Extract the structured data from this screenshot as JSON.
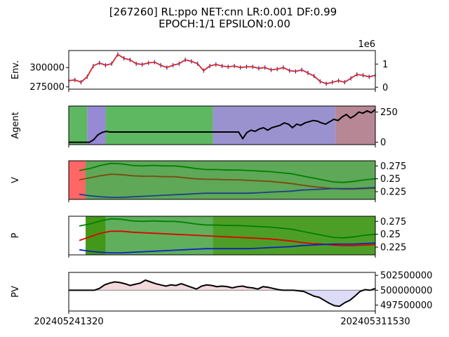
{
  "chart_data": {
    "type": "line",
    "title_lines": [
      "[267260] RL:ppo NET:cnn LR:0.001 DF:0.99",
      "EPOCH:1/1 EPSILON:0.00"
    ],
    "x_tick_labels": [
      "202405241320",
      "202405311530"
    ],
    "panels": [
      {
        "key": "env",
        "ylabel": "Env.",
        "left_ticks": [
          275000,
          300000
        ],
        "right_ticks": [
          0,
          1
        ],
        "right_offset_label": "1e6",
        "ylim": [
          272000,
          322000
        ],
        "series": [
          {
            "color": "#d62728",
            "values": [
              283000,
              284000,
              281000,
              288000,
              302000,
              306000,
              303000,
              305000,
              317000,
              312000,
              310000,
              305000,
              304000,
              306000,
              307000,
              303000,
              300000,
              303000,
              305000,
              310000,
              308000,
              305000,
              296000,
              302000,
              304000,
              302000,
              301000,
              302000,
              300000,
              301000,
              301000,
              299000,
              300000,
              297000,
              298000,
              300000,
              296000,
              295000,
              297000,
              293000,
              289000,
              282000,
              279000,
              281000,
              283000,
              281000,
              286000,
              291000,
              290000,
              288000,
              290000
            ]
          }
        ],
        "bars_color": "#1f1fcf"
      },
      {
        "key": "agent",
        "ylabel": "Agent",
        "right_ticks": [
          0,
          250
        ],
        "ylim": [
          -20,
          300
        ],
        "background_segments": [
          {
            "from": 0.0,
            "to": 0.06,
            "color": "#4caf50"
          },
          {
            "from": 0.06,
            "to": 0.12,
            "color": "#8b7dd0"
          },
          {
            "from": 0.12,
            "to": 0.47,
            "color": "#4caf50"
          },
          {
            "from": 0.47,
            "to": 0.87,
            "color": "#8f86c9"
          },
          {
            "from": 0.87,
            "to": 1.0,
            "color": "#b07a8a"
          }
        ],
        "series": [
          {
            "color": "#000000",
            "values": [
              0,
              0,
              0,
              0,
              0,
              0,
              20,
              60,
              80,
              90,
              85,
              85,
              85,
              85,
              85,
              85,
              85,
              85,
              85,
              85,
              85,
              85,
              85,
              85,
              85,
              85,
              85,
              85,
              85,
              85,
              85,
              85,
              85,
              85,
              85,
              85,
              85,
              85,
              85,
              85,
              85,
              85,
              30,
              80,
              100,
              90,
              110,
              120,
              100,
              120,
              130,
              140,
              160,
              150,
              120,
              150,
              140,
              160,
              170,
              180,
              175,
              160,
              150,
              170,
              190,
              180,
              210,
              230,
              200,
              220,
              250,
              240,
              260,
              245,
              270
            ]
          }
        ]
      },
      {
        "key": "v",
        "ylabel": "V",
        "right_ticks": [
          0.225,
          0.25,
          0.275
        ],
        "ylim": [
          0.21,
          0.285
        ],
        "background_segments": [
          {
            "from": 0.0,
            "to": 0.055,
            "color": "#ff5555"
          },
          {
            "from": 0.055,
            "to": 1.0,
            "color": "#4c9f45"
          }
        ],
        "series": [
          {
            "color": "#008000",
            "values": [
              null,
              0.266,
              0.27,
              0.276,
              0.28,
              0.279,
              0.276,
              0.275,
              0.276,
              0.275,
              0.275,
              0.273,
              0.27,
              0.268,
              0.268,
              0.267,
              0.267,
              0.266,
              0.265,
              0.264,
              0.262,
              0.26,
              0.256,
              0.252,
              0.248,
              0.244,
              0.243,
              0.245,
              0.248,
              0.25
            ]
          },
          {
            "color": "#7a4a10",
            "values": [
              null,
              0.248,
              0.252,
              0.256,
              0.259,
              0.258,
              0.256,
              0.255,
              0.255,
              0.254,
              0.254,
              0.252,
              0.25,
              0.249,
              0.249,
              0.248,
              0.248,
              0.247,
              0.246,
              0.245,
              0.243,
              0.241,
              0.238,
              0.235,
              0.233,
              0.231,
              0.23,
              0.23,
              0.231,
              0.232
            ]
          },
          {
            "color": "#1f3f88",
            "values": [
              null,
              0.22,
              0.217,
              0.215,
              0.214,
              0.214,
              0.215,
              0.216,
              0.217,
              0.218,
              0.219,
              0.22,
              0.221,
              0.222,
              0.222,
              0.222,
              0.222,
              0.222,
              0.223,
              0.224,
              0.225,
              0.226,
              0.228,
              0.229,
              0.23,
              0.231,
              0.231,
              0.231,
              0.232,
              0.233
            ]
          }
        ]
      },
      {
        "key": "p",
        "ylabel": "P",
        "right_ticks": [
          0.225,
          0.25,
          0.275
        ],
        "ylim": [
          0.21,
          0.285
        ],
        "background_segments": [
          {
            "from": 0.0,
            "to": 0.055,
            "color": "#ffffff"
          },
          {
            "from": 0.055,
            "to": 0.12,
            "color": "#2f8c00"
          },
          {
            "from": 0.12,
            "to": 0.47,
            "color": "#4ea64a"
          },
          {
            "from": 0.47,
            "to": 1.0,
            "color": "#3a9410"
          }
        ],
        "series": [
          {
            "color": "#008000",
            "values": [
              null,
              0.266,
              0.27,
              0.276,
              0.28,
              0.279,
              0.276,
              0.275,
              0.276,
              0.275,
              0.275,
              0.273,
              0.27,
              0.268,
              0.268,
              0.267,
              0.267,
              0.266,
              0.265,
              0.264,
              0.262,
              0.26,
              0.256,
              0.252,
              0.248,
              0.244,
              0.243,
              0.245,
              0.248,
              0.25
            ]
          },
          {
            "color": "#e00000",
            "values": [
              null,
              0.238,
              0.245,
              0.252,
              0.256,
              0.256,
              0.254,
              0.253,
              0.252,
              0.251,
              0.25,
              0.249,
              0.248,
              0.247,
              0.246,
              0.245,
              0.244,
              0.243,
              0.242,
              0.241,
              0.239,
              0.237,
              0.234,
              0.232,
              0.231,
              0.229,
              0.228,
              0.228,
              0.229,
              0.23
            ]
          },
          {
            "color": "#1020c0",
            "values": [
              null,
              0.22,
              0.217,
              0.215,
              0.214,
              0.214,
              0.215,
              0.216,
              0.217,
              0.218,
              0.219,
              0.22,
              0.221,
              0.222,
              0.222,
              0.222,
              0.222,
              0.222,
              0.223,
              0.224,
              0.225,
              0.226,
              0.228,
              0.229,
              0.23,
              0.231,
              0.231,
              0.231,
              0.232,
              0.233
            ]
          }
        ]
      },
      {
        "key": "pv",
        "ylabel": "PV",
        "right_ticks": [
          497500000,
          500000000,
          502500000
        ],
        "ylim": [
          496500000,
          503000000
        ],
        "baseline": 500000000,
        "series": [
          {
            "color": "#000000",
            "values": [
              500000000,
              500000000,
              500000000,
              500000000,
              500000000,
              500000000,
              500300000,
              500900000,
              501200000,
              501400000,
              501300000,
              501100000,
              500800000,
              501000000,
              501200000,
              501700000,
              501400000,
              501100000,
              500900000,
              500700000,
              500900000,
              500800000,
              501100000,
              500800000,
              500500000,
              500200000,
              500700000,
              500900000,
              500800000,
              500600000,
              500700000,
              500600000,
              500400000,
              500600000,
              500700000,
              500500000,
              500400000,
              500200000,
              500600000,
              500500000,
              500300000,
              500100000,
              500000000,
              500000000,
              500000000,
              499900000,
              499800000,
              499400000,
              499000000,
              498800000,
              498300000,
              497800000,
              497400000,
              497300000,
              497900000,
              498300000,
              499000000,
              499800000,
              500100000,
              500000000,
              500300000
            ]
          }
        ]
      }
    ]
  }
}
